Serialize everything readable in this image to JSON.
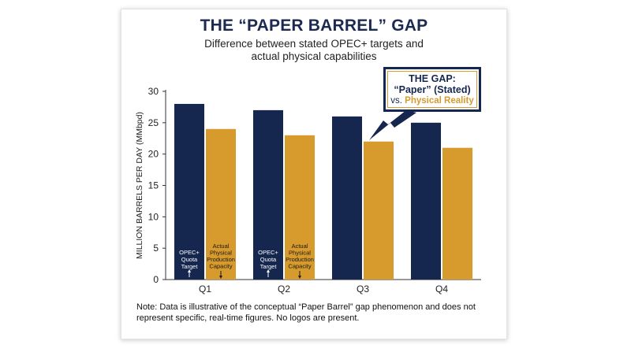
{
  "header": {
    "title": "THE “PAPER BARREL” GAP",
    "subtitle_line1": "Difference between stated OPEC+ targets and",
    "subtitle_line2": "actual physical capabilities"
  },
  "callout": {
    "line1": "THE GAP:",
    "line2": "“Paper” (Stated)",
    "line3_prefix": "vs. ",
    "line3_highlight": "Physical Reality"
  },
  "bar_labels": {
    "quota": [
      "OPEC+",
      "Quota",
      "Target"
    ],
    "capacity": [
      "Actual",
      "Physical",
      "Production",
      "Capacity"
    ]
  },
  "footer": {
    "note_line1": "Note: Data is illustrative of the conceptual “Paper Barrel” gap phenomenon and does not",
    "note_line2": "represent specific, real-time figures. No logos are present."
  },
  "colors": {
    "quota": "#15264f",
    "capacity": "#d69a2d",
    "title": "#1b2a52"
  },
  "chart_data": {
    "type": "bar",
    "categories": [
      "Q1",
      "Q2",
      "Q3",
      "Q4"
    ],
    "series": [
      {
        "values": [
          28,
          27,
          26,
          25
        ]
      },
      {
        "values": [
          24,
          23,
          22,
          21
        ]
      }
    ],
    "ylabel": "MILLION BARRELS PER DAY (MMbpd)",
    "ylim": [
      0,
      30
    ],
    "yticks": [
      0,
      5,
      10,
      15,
      20,
      25,
      30
    ],
    "grid": false,
    "legend": "none"
  }
}
